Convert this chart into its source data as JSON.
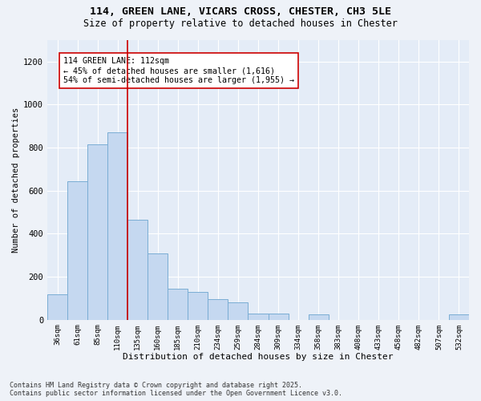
{
  "title_line1": "114, GREEN LANE, VICARS CROSS, CHESTER, CH3 5LE",
  "title_line2": "Size of property relative to detached houses in Chester",
  "xlabel": "Distribution of detached houses by size in Chester",
  "ylabel": "Number of detached properties",
  "categories": [
    "36sqm",
    "61sqm",
    "85sqm",
    "110sqm",
    "135sqm",
    "160sqm",
    "185sqm",
    "210sqm",
    "234sqm",
    "259sqm",
    "284sqm",
    "309sqm",
    "334sqm",
    "358sqm",
    "383sqm",
    "408sqm",
    "433sqm",
    "458sqm",
    "482sqm",
    "507sqm",
    "532sqm"
  ],
  "values": [
    120,
    645,
    815,
    870,
    465,
    310,
    145,
    130,
    95,
    80,
    30,
    30,
    0,
    25,
    0,
    0,
    0,
    0,
    0,
    0,
    25
  ],
  "bar_color": "#c5d8f0",
  "bar_edge_color": "#7aadd4",
  "vline_color": "#cc0000",
  "annotation_text": "114 GREEN LANE: 112sqm\n← 45% of detached houses are smaller (1,616)\n54% of semi-detached houses are larger (1,955) →",
  "annotation_box_facecolor": "white",
  "annotation_box_edgecolor": "#cc0000",
  "ylim": [
    0,
    1300
  ],
  "yticks": [
    0,
    200,
    400,
    600,
    800,
    1000,
    1200
  ],
  "footer_line1": "Contains HM Land Registry data © Crown copyright and database right 2025.",
  "footer_line2": "Contains public sector information licensed under the Open Government Licence v3.0.",
  "bg_color": "#eef2f8",
  "plot_bg_color": "#e4ecf7",
  "grid_color": "#ffffff"
}
